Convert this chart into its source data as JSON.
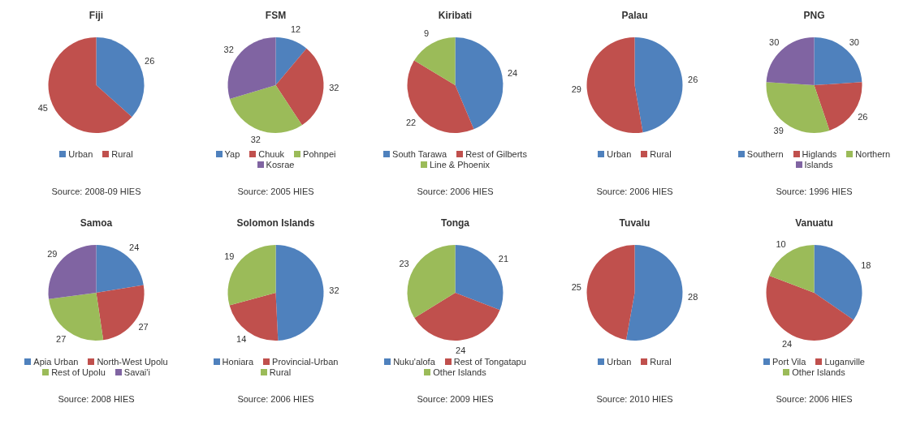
{
  "chart_data": [
    {
      "type": "pie",
      "title": "Fiji",
      "categories": [
        "Urban",
        "Rural"
      ],
      "values": [
        26,
        45
      ],
      "colors": [
        "#4f81bd",
        "#c0504d"
      ],
      "data_labels": true,
      "legend": "bottom",
      "annotations": [
        "Source: 2008-09 HIES"
      ]
    },
    {
      "type": "pie",
      "title": "FSM",
      "categories": [
        "Yap",
        "Chuuk",
        "Pohnpei",
        "Kosrae"
      ],
      "values": [
        12,
        32,
        32,
        32
      ],
      "colors": [
        "#4f81bd",
        "#c0504d",
        "#9bbb59",
        "#8064a2"
      ],
      "data_labels": true,
      "legend": "bottom",
      "annotations": [
        "Source:  2005 HIES"
      ]
    },
    {
      "type": "pie",
      "title": "Kiribati",
      "categories": [
        "South Tarawa",
        "Rest of Gilberts",
        "Line & Phoenix"
      ],
      "values": [
        24,
        22,
        9
      ],
      "colors": [
        "#4f81bd",
        "#c0504d",
        "#9bbb59"
      ],
      "data_labels": true,
      "legend": "bottom",
      "annotations": [
        "Source: 2006 HIES"
      ]
    },
    {
      "type": "pie",
      "title": "Palau",
      "categories": [
        "Urban",
        "Rural"
      ],
      "values": [
        26,
        29
      ],
      "colors": [
        "#4f81bd",
        "#c0504d"
      ],
      "data_labels": true,
      "legend": "bottom",
      "annotations": [
        "Source: 2006 HIES"
      ]
    },
    {
      "type": "pie",
      "title": "PNG",
      "categories": [
        "Southern",
        "Higlands",
        "Northern",
        "Islands"
      ],
      "values": [
        30,
        26,
        39,
        30
      ],
      "colors": [
        "#4f81bd",
        "#c0504d",
        "#9bbb59",
        "#8064a2"
      ],
      "data_labels": true,
      "legend": "bottom",
      "annotations": [
        "Source: 1996 HIES"
      ]
    },
    {
      "type": "pie",
      "title": "Samoa",
      "categories": [
        "Apia Urban",
        "North-West Upolu",
        "Rest of Upolu",
        "Savai'i"
      ],
      "values": [
        24,
        27,
        27,
        29
      ],
      "colors": [
        "#4f81bd",
        "#c0504d",
        "#9bbb59",
        "#8064a2"
      ],
      "data_labels": true,
      "legend": "bottom",
      "annotations": [
        "Source: 2008 HIES"
      ]
    },
    {
      "type": "pie",
      "title": "Solomon Islands",
      "categories": [
        "Honiara",
        "Provincial-Urban",
        "Rural"
      ],
      "values": [
        32,
        14,
        19
      ],
      "colors": [
        "#4f81bd",
        "#c0504d",
        "#9bbb59"
      ],
      "data_labels": true,
      "legend": "bottom",
      "annotations": [
        "Source: 2006 HIES"
      ]
    },
    {
      "type": "pie",
      "title": "Tonga",
      "categories": [
        "Nuku'alofa",
        "Rest of Tongatapu",
        "Other Islands"
      ],
      "values": [
        21,
        24,
        23
      ],
      "colors": [
        "#4f81bd",
        "#c0504d",
        "#9bbb59"
      ],
      "data_labels": true,
      "legend": "bottom",
      "annotations": [
        "Source: 2009 HIES"
      ]
    },
    {
      "type": "pie",
      "title": "Tuvalu",
      "categories": [
        "Urban",
        "Rural"
      ],
      "values": [
        28,
        25
      ],
      "colors": [
        "#4f81bd",
        "#c0504d"
      ],
      "data_labels": true,
      "legend": "bottom",
      "annotations": [
        "Source: 2010 HIES"
      ]
    },
    {
      "type": "pie",
      "title": "Vanuatu",
      "categories": [
        "Port Vila",
        "Luganville",
        "Other Islands"
      ],
      "values": [
        18,
        24,
        10
      ],
      "colors": [
        "#4f81bd",
        "#c0504d",
        "#9bbb59"
      ],
      "data_labels": true,
      "legend": "bottom",
      "annotations": [
        "Source: 2006 HIES"
      ]
    }
  ]
}
